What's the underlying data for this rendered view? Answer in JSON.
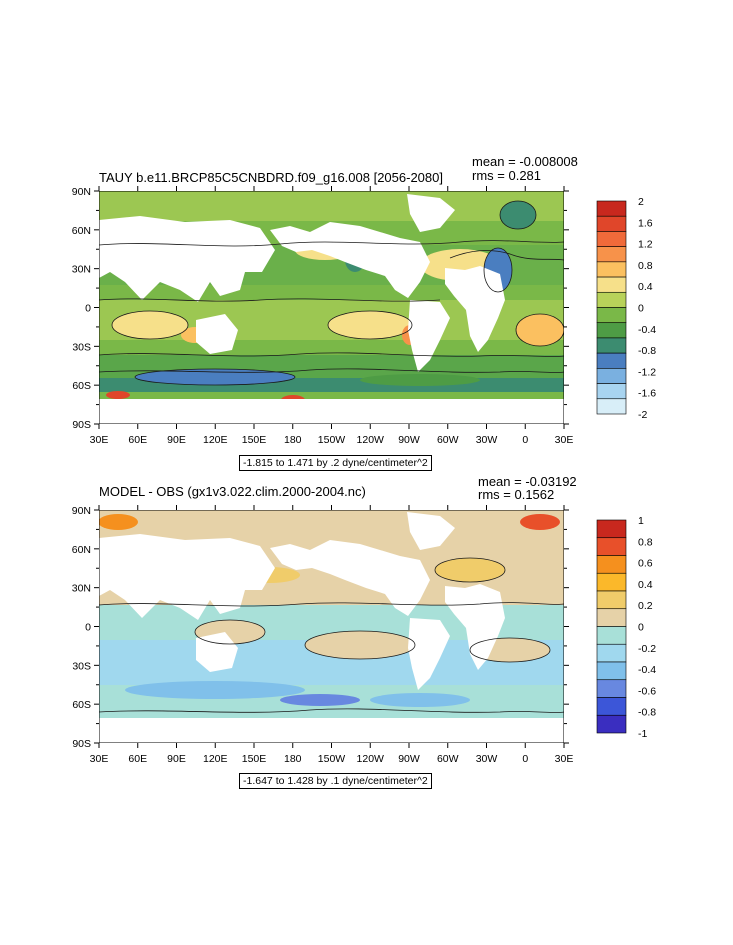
{
  "panels": [
    {
      "title": "TAUY b.e11.BRCP85C5CNBDRD.f09_g16.008 [2056-2080]",
      "mean": "mean = -0.008008",
      "rms": "rms = 0.281",
      "range_label": "-1.815 to 1.471 by .2 dyne/centimeter^2",
      "levels": [
        "2",
        "1.6",
        "1.2",
        "0.8",
        "0.4",
        "0",
        "-0.4",
        "-0.8",
        "-1.2",
        "-1.6",
        "-2"
      ],
      "colors": [
        "#c8281e",
        "#e0462a",
        "#f06a3a",
        "#f7924a",
        "#fbc060",
        "#f6e08a",
        "#b8d25a",
        "#7ab848",
        "#4e9c45",
        "#3c8c70",
        "#4a7ec0",
        "#7ab0e0",
        "#a8d4f0",
        "#d8eef8"
      ]
    },
    {
      "title": "MODEL - OBS (gx1v3.022.clim.2000-2004.nc)",
      "mean": "mean = -0.03192",
      "rms": "rms = 0.1562",
      "range_label": "-1.647 to 1.428 by .1 dyne/centimeter^2",
      "levels": [
        "1",
        "0.8",
        "0.6",
        "0.4",
        "0.2",
        "0",
        "-0.2",
        "-0.4",
        "-0.6",
        "-0.8",
        "-1"
      ],
      "colors": [
        "#c8281e",
        "#e8502a",
        "#f5901e",
        "#fbb82a",
        "#f0cc6a",
        "#e6d2a8",
        "#a8e0d8",
        "#a0d8ee",
        "#80c0ea",
        "#6888e0",
        "#3c56d8",
        "#3a2ec0"
      ]
    }
  ],
  "axes": {
    "lat_labels": [
      "90N",
      "60N",
      "30N",
      "0",
      "30S",
      "60S",
      "90S"
    ],
    "lon_labels": [
      "30E",
      "60E",
      "90E",
      "120E",
      "150E",
      "180",
      "150W",
      "120W",
      "90W",
      "60W",
      "30W",
      "0",
      "30E"
    ]
  }
}
